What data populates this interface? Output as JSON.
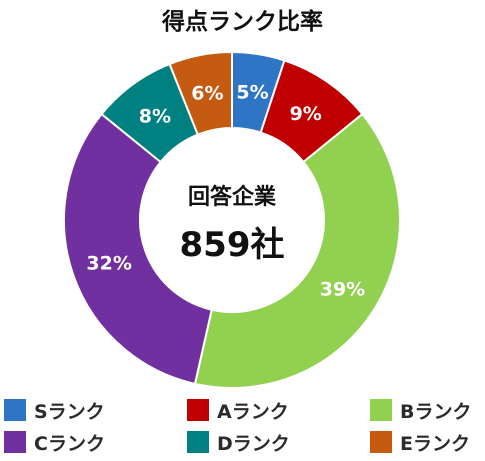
{
  "chart_data": {
    "type": "pie",
    "title": "得点ランク比率",
    "center_label": "回答企業",
    "center_value": "859社",
    "categories": [
      "Sランク",
      "Aランク",
      "Bランク",
      "Cランク",
      "Dランク",
      "Eランク"
    ],
    "values": [
      5,
      9,
      39,
      32,
      8,
      6
    ],
    "data_labels": [
      "5%",
      "9%",
      "39%",
      "32%",
      "8%",
      "6%"
    ],
    "colors": [
      "#2e75c6",
      "#c00000",
      "#92d050",
      "#7030a0",
      "#008080",
      "#c55a11"
    ],
    "legend": "bottom"
  }
}
